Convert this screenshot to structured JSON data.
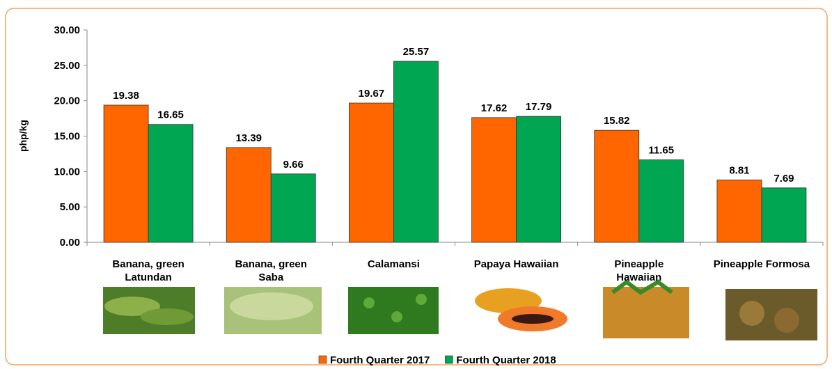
{
  "chart_data": {
    "type": "bar",
    "y_label": "php/kg",
    "categories": [
      "Banana, green Latundan",
      "Banana, green Saba",
      "Calamansi",
      "Papaya Hawaiian",
      "Pineapple Hawaiian",
      "Pineapple Formosa"
    ],
    "series": [
      {
        "name": "Fourth Quarter 2017",
        "color": "#ff6600",
        "values": [
          19.38,
          13.39,
          19.67,
          17.62,
          15.82,
          8.81
        ]
      },
      {
        "name": "Fourth Quarter 2018",
        "color": "#00a651",
        "values": [
          16.65,
          9.66,
          25.57,
          17.79,
          11.65,
          7.69
        ]
      }
    ],
    "ylim": [
      0,
      30
    ],
    "yticks": [
      {
        "value": 0,
        "label": "0.00"
      },
      {
        "value": 5,
        "label": "5.00"
      },
      {
        "value": 10,
        "label": "10.00"
      },
      {
        "value": 15,
        "label": "15.00"
      },
      {
        "value": 20,
        "label": "20.00"
      },
      {
        "value": 25,
        "label": "25.00"
      },
      {
        "value": 30,
        "label": "30.00"
      }
    ],
    "grid": false
  }
}
